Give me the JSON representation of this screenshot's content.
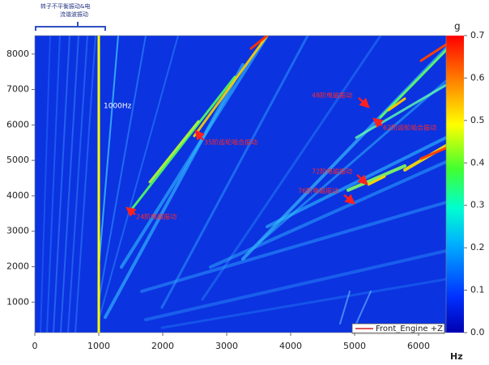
{
  "chart_data": {
    "type": "heatmap",
    "xlabel": "Hz",
    "xlim": [
      0,
      6430
    ],
    "xticks": [
      0,
      1000,
      2000,
      3000,
      4000,
      5000,
      6000
    ],
    "ylim": [
      140,
      8520
    ],
    "yticks": [
      1000,
      2000,
      3000,
      4000,
      5000,
      6000,
      7000,
      8000
    ],
    "marker": {
      "x": 1000,
      "label": "1000Hz",
      "color": "#ffff00"
    },
    "legend": {
      "name": "Front_Engine +Z",
      "color": "#d02020"
    },
    "header_note": [
      "转子不平衡振动&电",
      "流谐波振动"
    ],
    "annotations": [
      "24阶电磁振动",
      "35阶齿轮啮合振动",
      "48阶电磁振动",
      "62阶齿轮啮合振动",
      "72阶电磁振动",
      "76阶电磁振动"
    ],
    "colorbar": {
      "label": "g",
      "lim": [
        0,
        0.7
      ],
      "ticks": [
        {
          "value": 0,
          "label": "0.0"
        },
        0.1,
        0.2,
        0.3,
        0.4,
        0.5,
        0.6,
        0.7
      ]
    }
  }
}
